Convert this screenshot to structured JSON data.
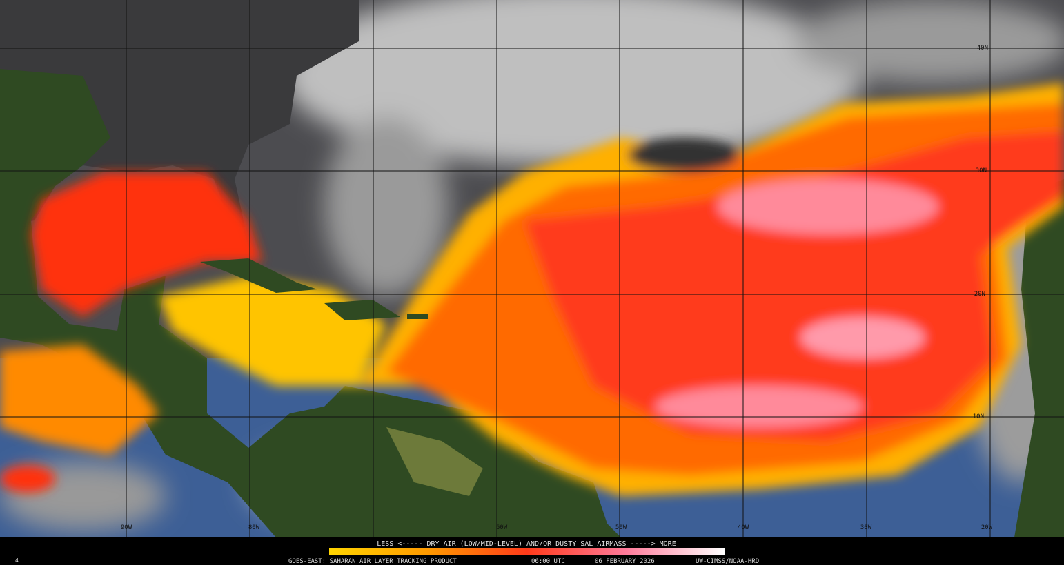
{
  "map": {
    "legend": {
      "text": "LESS <----- DRY AIR (LOW/MID-LEVEL) AND/OR DUSTY SAL AIRMASS -----> MORE"
    },
    "footer": {
      "product": "GOES-EAST: SAHARAN AIR LAYER TRACKING PRODUCT",
      "time": "06:00 UTC",
      "date": "06 FEBRUARY 2026",
      "credit": "UW-CIMSS/NOAA-HRD"
    },
    "corner_label": "4",
    "longitude_labels": [
      "90W",
      "80W",
      "60W",
      "50W",
      "40W",
      "30W",
      "20W"
    ],
    "latitude_labels": [
      "40N",
      "30N",
      "20N",
      "10N"
    ]
  }
}
